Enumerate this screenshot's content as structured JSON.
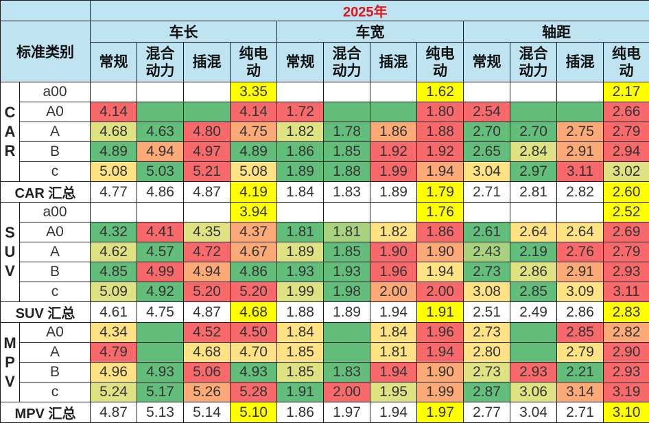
{
  "title": "2025年",
  "corner_label": "标准类别",
  "groups": [
    {
      "label": "车长",
      "subs": [
        "常规",
        "混合动力",
        "插混",
        "纯电动"
      ]
    },
    {
      "label": "车宽",
      "subs": [
        "常规",
        "混合动力",
        "插混",
        "纯电动"
      ]
    },
    {
      "label": "轴距",
      "subs": [
        "常规",
        "混合动力",
        "插混",
        "纯电动"
      ]
    }
  ],
  "colors": {
    "header_bg": "#bfe3f1",
    "title_red": "#e0141e",
    "highlight_yellow": "#ffff00",
    "green": "#63be7b",
    "light_green": "#a9d27f",
    "yellow_green": "#dfe283",
    "yellow": "#fee283",
    "orange": "#fba977",
    "red": "#f8696b"
  },
  "sections": [
    {
      "category": "CAR",
      "total_label": "CAR 汇总",
      "rows": [
        {
          "size": "a00",
          "values": [
            "",
            "",
            "",
            "3.35",
            "",
            "",
            "",
            "1.62",
            "",
            "",
            "",
            "2.17"
          ],
          "fills": [
            "w",
            "w",
            "w",
            "Y",
            "w",
            "w",
            "w",
            "Y",
            "w",
            "w",
            "w",
            "Y"
          ]
        },
        {
          "size": "A0",
          "values": [
            "4.14",
            "",
            "",
            "4.14",
            "1.72",
            "",
            "",
            "1.80",
            "2.54",
            "",
            "",
            "2.66"
          ],
          "fills": [
            "r",
            "g",
            "g",
            "r",
            "r",
            "g",
            "g",
            "r",
            "r",
            "g",
            "g",
            "r"
          ]
        },
        {
          "size": "A",
          "values": [
            "4.68",
            "4.63",
            "4.80",
            "4.75",
            "1.82",
            "1.78",
            "1.86",
            "1.88",
            "2.70",
            "2.70",
            "2.75",
            "2.79"
          ],
          "fills": [
            "yg",
            "g",
            "r",
            "o",
            "yg",
            "g",
            "o",
            "r",
            "g",
            "g",
            "o",
            "r"
          ]
        },
        {
          "size": "B",
          "values": [
            "4.89",
            "4.94",
            "4.97",
            "4.89",
            "1.86",
            "1.85",
            "1.92",
            "1.92",
            "2.65",
            "2.84",
            "2.91",
            "2.94"
          ],
          "fills": [
            "g",
            "o",
            "r",
            "g",
            "g",
            "g",
            "r",
            "r",
            "g",
            "yg",
            "o",
            "r"
          ]
        },
        {
          "size": "c",
          "values": [
            "5.08",
            "5.03",
            "5.21",
            "5.08",
            "1.89",
            "1.88",
            "1.99",
            "1.94",
            "3.04",
            "2.97",
            "3.11",
            "3.02"
          ],
          "fills": [
            "y",
            "g",
            "r",
            "y",
            "g",
            "g",
            "r",
            "o",
            "y",
            "g",
            "r",
            "yg"
          ]
        }
      ],
      "totals": {
        "values": [
          "4.77",
          "4.86",
          "4.87",
          "4.19",
          "1.84",
          "1.83",
          "1.89",
          "1.79",
          "2.71",
          "2.81",
          "2.82",
          "2.60"
        ],
        "fills": [
          "w",
          "w",
          "w",
          "Y",
          "w",
          "w",
          "w",
          "Y",
          "w",
          "w",
          "w",
          "Y"
        ]
      }
    },
    {
      "category": "SUV",
      "total_label": "SUV 汇总",
      "rows": [
        {
          "size": "a00",
          "values": [
            "",
            "",
            "",
            "3.94",
            "",
            "",
            "",
            "1.76",
            "",
            "",
            "",
            "2.52"
          ],
          "fills": [
            "w",
            "w",
            "w",
            "Y",
            "w",
            "w",
            "w",
            "Y",
            "w",
            "w",
            "w",
            "Y"
          ]
        },
        {
          "size": "A0",
          "values": [
            "4.32",
            "4.41",
            "4.35",
            "4.37",
            "1.81",
            "1.81",
            "1.82",
            "1.86",
            "2.61",
            "2.64",
            "2.64",
            "2.69"
          ],
          "fills": [
            "g",
            "r",
            "yg",
            "o",
            "g",
            "lg",
            "y",
            "r",
            "g",
            "y",
            "y",
            "r"
          ]
        },
        {
          "size": "A",
          "values": [
            "4.62",
            "4.57",
            "4.72",
            "4.67",
            "1.89",
            "1.85",
            "1.90",
            "1.90",
            "2.43",
            "2.19",
            "2.76",
            "2.79"
          ],
          "fills": [
            "yg",
            "g",
            "r",
            "o",
            "yg",
            "g",
            "r",
            "o",
            "lg",
            "g",
            "r",
            "r"
          ]
        },
        {
          "size": "B",
          "values": [
            "4.85",
            "4.99",
            "4.94",
            "4.86",
            "1.93",
            "1.93",
            "1.96",
            "1.94",
            "2.73",
            "2.86",
            "2.91",
            "2.93"
          ],
          "fills": [
            "g",
            "r",
            "o",
            "g",
            "g",
            "g",
            "r",
            "y",
            "g",
            "yg",
            "o",
            "r"
          ]
        },
        {
          "size": "c",
          "values": [
            "5.09",
            "4.92",
            "5.20",
            "5.20",
            "1.99",
            "1.98",
            "2.00",
            "2.00",
            "3.08",
            "2.85",
            "3.09",
            "3.11"
          ],
          "fills": [
            "yg",
            "g",
            "r",
            "r",
            "yg",
            "g",
            "o",
            "r",
            "y",
            "g",
            "y",
            "r"
          ]
        }
      ],
      "totals": {
        "values": [
          "4.61",
          "4.75",
          "4.87",
          "4.68",
          "1.88",
          "1.89",
          "1.94",
          "1.91",
          "2.51",
          "2.49",
          "2.86",
          "2.83"
        ],
        "fills": [
          "w",
          "w",
          "w",
          "Y",
          "w",
          "w",
          "w",
          "Y",
          "w",
          "w",
          "w",
          "Y"
        ]
      }
    },
    {
      "category": "MPV",
      "total_label": "MPV 汇总",
      "rows": [
        {
          "size": "A0",
          "values": [
            "4.34",
            "",
            "4.52",
            "4.50",
            "1.84",
            "",
            "1.84",
            "1.96",
            "2.73",
            "",
            "2.85",
            "2.82"
          ],
          "fills": [
            "y",
            "g",
            "r",
            "r",
            "y",
            "g",
            "y",
            "r",
            "y",
            "g",
            "r",
            "o"
          ]
        },
        {
          "size": "A",
          "values": [
            "4.79",
            "",
            "4.68",
            "4.70",
            "1.85",
            "",
            "1.81",
            "1.94",
            "2.80",
            "",
            "2.79",
            "2.90"
          ],
          "fills": [
            "r",
            "g",
            "y",
            "y",
            "y",
            "g",
            "y",
            "r",
            "y",
            "g",
            "y",
            "r"
          ]
        },
        {
          "size": "B",
          "values": [
            "4.96",
            "4.93",
            "5.06",
            "4.93",
            "1.85",
            "1.83",
            "1.94",
            "1.90",
            "2.73",
            "2.93",
            "2.21",
            "2.93"
          ],
          "fills": [
            "y",
            "g",
            "r",
            "g",
            "yg",
            "g",
            "r",
            "o",
            "yg",
            "r",
            "g",
            "r"
          ]
        },
        {
          "size": "c",
          "values": [
            "5.24",
            "5.17",
            "5.26",
            "5.28",
            "1.91",
            "2.00",
            "1.95",
            "1.99",
            "2.87",
            "3.06",
            "3.14",
            "3.19"
          ],
          "fills": [
            "yg",
            "g",
            "o",
            "r",
            "g",
            "r",
            "yg",
            "o",
            "g",
            "yg",
            "o",
            "r"
          ]
        }
      ],
      "totals": {
        "values": [
          "4.87",
          "5.13",
          "5.14",
          "5.10",
          "1.86",
          "1.97",
          "1.94",
          "1.97",
          "2.77",
          "3.04",
          "2.71",
          "3.10"
        ],
        "fills": [
          "w",
          "w",
          "w",
          "Y",
          "w",
          "w",
          "w",
          "Y",
          "w",
          "w",
          "w",
          "Y"
        ]
      }
    }
  ]
}
